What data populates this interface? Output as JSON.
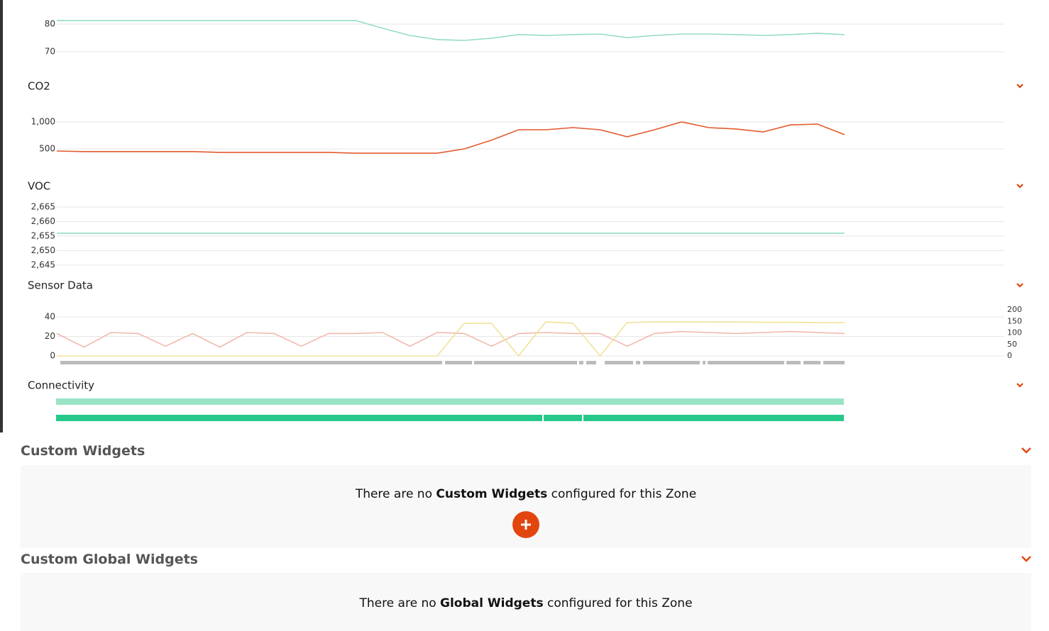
{
  "chart_data": [
    {
      "type": "line",
      "ylim": [
        70,
        82
      ],
      "yticks": [
        70,
        80
      ],
      "series": [
        {
          "color": "#94dcc6",
          "values": [
            81.3,
            81.3,
            81.3,
            81.3,
            81.3,
            81.3,
            81.3,
            81.3,
            81.3,
            81.3,
            81.3,
            81.3,
            78.5,
            75.9,
            74.4,
            74.1,
            74.9,
            76.2,
            75.9,
            76.2,
            76.4,
            75.1,
            75.9,
            76.4,
            76.4,
            76.2,
            75.9,
            76.2,
            76.7,
            76.2
          ]
        }
      ]
    },
    {
      "type": "line",
      "title": "CO2",
      "ylim": [
        400,
        1100
      ],
      "yticks": [
        500,
        {
          "value": 1000,
          "label": "1,000"
        }
      ],
      "series": [
        {
          "color": "#e25a2c",
          "values": [
            460,
            450,
            450,
            450,
            450,
            450,
            435,
            435,
            435,
            435,
            435,
            420,
            420,
            420,
            420,
            500,
            660,
            855,
            855,
            895,
            855,
            725,
            855,
            1000,
            895,
            870,
            815,
            945,
            960,
            765
          ]
        }
      ]
    },
    {
      "type": "line",
      "title": "VOC",
      "ylim": [
        2645,
        2665
      ],
      "yticks": [
        {
          "value": 2645,
          "label": "2,645"
        },
        {
          "value": 2650,
          "label": "2,650"
        },
        {
          "value": 2655,
          "label": "2,655"
        },
        {
          "value": 2660,
          "label": "2,660"
        },
        {
          "value": 2665,
          "label": "2,665"
        }
      ],
      "series": [
        {
          "color": "#94dcc6",
          "values": [
            2656,
            2656
          ]
        }
      ]
    },
    {
      "type": "line",
      "title": "Sensor Data",
      "ylim": [
        0,
        40
      ],
      "yticks": [
        0,
        20,
        40
      ],
      "y2lim": [
        0,
        200
      ],
      "y2ticks": [
        0,
        50,
        100,
        150,
        200
      ],
      "series": [
        {
          "color": "#f2b8ad",
          "values": [
            23,
            9,
            24,
            23,
            10,
            23,
            9,
            24,
            23,
            10,
            23,
            23,
            24,
            10,
            24,
            23,
            10,
            23,
            24,
            23,
            23,
            10,
            23,
            25,
            24,
            23,
            24,
            25,
            24,
            23
          ]
        },
        {
          "color": "#efe29a",
          "axis": "y2",
          "values": [
            0,
            0,
            0,
            0,
            0,
            0,
            0,
            0,
            0,
            0,
            0,
            0,
            0,
            0,
            0,
            142,
            142,
            0,
            148,
            142,
            0,
            145,
            148,
            148,
            147,
            147,
            146,
            146,
            145,
            145
          ]
        }
      ]
    }
  ],
  "connectivity": {
    "title": "Connectivity"
  },
  "custom_widgets": {
    "title": "Custom Widgets",
    "message": {
      "prefix": "There are no ",
      "emphasis": "Custom Widgets",
      "suffix": " configured for this Zone"
    }
  },
  "global_widgets": {
    "title": "Custom Global Widgets",
    "message": {
      "prefix": "There are no ",
      "emphasis": "Global Widgets",
      "suffix": " configured for this Zone"
    }
  }
}
